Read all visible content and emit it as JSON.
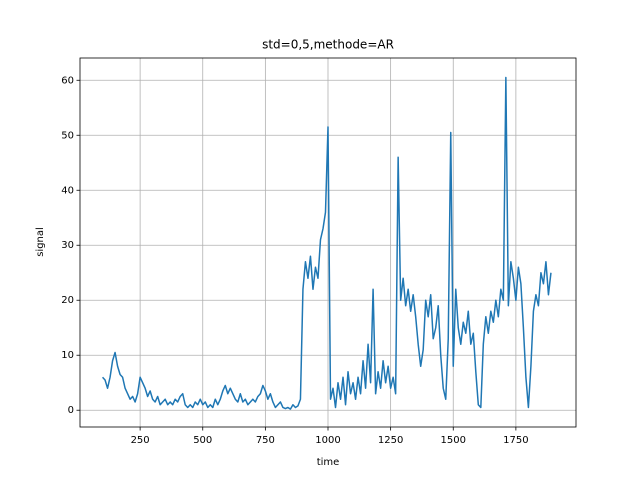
{
  "chart_data": {
    "type": "line",
    "title": "std=0,5,methode=AR",
    "x_label": "time",
    "y_label": "signal",
    "x": [
      100,
      110,
      120,
      130,
      140,
      150,
      160,
      170,
      180,
      190,
      200,
      210,
      220,
      230,
      240,
      250,
      260,
      270,
      280,
      290,
      300,
      310,
      320,
      330,
      340,
      350,
      360,
      370,
      380,
      390,
      400,
      410,
      420,
      430,
      440,
      450,
      460,
      470,
      480,
      490,
      500,
      510,
      520,
      530,
      540,
      550,
      560,
      570,
      580,
      590,
      600,
      610,
      620,
      630,
      640,
      650,
      660,
      670,
      680,
      690,
      700,
      710,
      720,
      730,
      740,
      750,
      760,
      770,
      780,
      790,
      800,
      810,
      820,
      830,
      840,
      850,
      860,
      870,
      880,
      890,
      900,
      910,
      920,
      930,
      940,
      950,
      960,
      970,
      980,
      990,
      1000,
      1010,
      1020,
      1030,
      1040,
      1050,
      1060,
      1070,
      1080,
      1090,
      1100,
      1110,
      1120,
      1130,
      1140,
      1150,
      1160,
      1170,
      1180,
      1190,
      1200,
      1210,
      1220,
      1230,
      1240,
      1250,
      1260,
      1270,
      1280,
      1290,
      1300,
      1310,
      1320,
      1330,
      1340,
      1350,
      1360,
      1370,
      1380,
      1390,
      1400,
      1410,
      1420,
      1430,
      1440,
      1450,
      1460,
      1470,
      1480,
      1490,
      1500,
      1510,
      1520,
      1530,
      1540,
      1550,
      1560,
      1570,
      1580,
      1590,
      1600,
      1610,
      1620,
      1630,
      1640,
      1650,
      1660,
      1670,
      1680,
      1690,
      1700,
      1710,
      1720,
      1730,
      1740,
      1750,
      1760,
      1770,
      1780,
      1790,
      1800,
      1810,
      1820,
      1830,
      1840,
      1850,
      1860,
      1870,
      1880,
      1890
    ],
    "series": [
      {
        "name": "signal",
        "color": "#1f77b4",
        "values": [
          6,
          5.5,
          4,
          6,
          9,
          10.5,
          8,
          6.5,
          6,
          4,
          3,
          2,
          2.5,
          1.5,
          3,
          6,
          5,
          4,
          2.5,
          3.5,
          2,
          1.5,
          2.5,
          1,
          1.5,
          2,
          1,
          1.5,
          1,
          2,
          1.5,
          2.5,
          3,
          1,
          0.5,
          1,
          0.5,
          1.5,
          1,
          2,
          1,
          1.5,
          0.5,
          1,
          0.5,
          2,
          1,
          2,
          3.5,
          4.5,
          3,
          4,
          3,
          2,
          1.5,
          3,
          1.5,
          2,
          1,
          1.5,
          2,
          1.5,
          2.5,
          3,
          4.5,
          3.5,
          2,
          3,
          1.5,
          0.5,
          1,
          1.5,
          0.5,
          0.3,
          0.5,
          0.2,
          1,
          0.5,
          0.8,
          2,
          22,
          27,
          24,
          28,
          22,
          26,
          24,
          31,
          33,
          36,
          51.5,
          2,
          4,
          0.5,
          5,
          2,
          6,
          1,
          7,
          3,
          5,
          2,
          6,
          3,
          9,
          4,
          12,
          5,
          22,
          3,
          7,
          4,
          9,
          5,
          8,
          4,
          6,
          3,
          46,
          20,
          24,
          19,
          22,
          18,
          21,
          17,
          12,
          8,
          11,
          20,
          17,
          21,
          13,
          15,
          19,
          10,
          4,
          2,
          13,
          50.5,
          8,
          22,
          15,
          12,
          16,
          14,
          18,
          12,
          14,
          7,
          1,
          0.5,
          12,
          17,
          14,
          18,
          16,
          20,
          17,
          22,
          20,
          60.5,
          19,
          27,
          24,
          20,
          26,
          23,
          15,
          6,
          0.5,
          8,
          18,
          21,
          19,
          25,
          23,
          27,
          21,
          25
        ]
      }
    ],
    "xlim": [
      10,
      1990
    ],
    "ylim": [
      -3.05,
      64.05
    ],
    "xticks": [
      250,
      500,
      750,
      1000,
      1250,
      1500,
      1750
    ],
    "yticks": [
      0,
      10,
      20,
      30,
      40,
      50,
      60
    ],
    "grid": true
  }
}
